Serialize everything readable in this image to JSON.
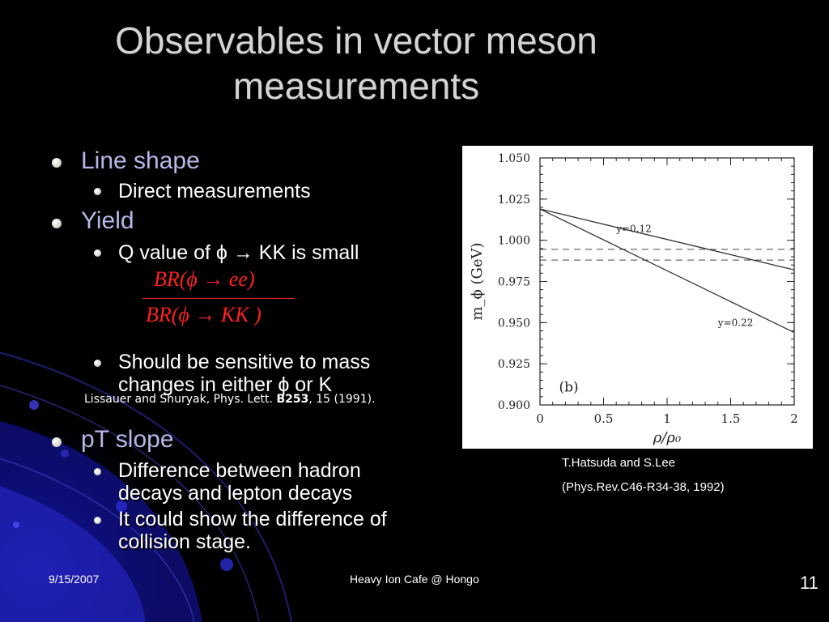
{
  "slide": {
    "title_line1": "Observables in vector meson",
    "title_line2": "measurements",
    "page_number": "11"
  },
  "bullets": {
    "line_shape": "Line shape",
    "direct_measurements": "Direct measurements",
    "yield": "Yield",
    "q_value": "Q value of  ϕ → KK is small",
    "formula_numerator": "BR(ϕ → ee)",
    "formula_denominator": "BR(ϕ → KK )",
    "sensitive_line1": "Should be sensitive to mass",
    "sensitive_line2": "changes in either ϕ or K",
    "reference_prefix": "Lissauer and Shuryak, Phys. Lett. ",
    "reference_volume": "B253",
    "reference_suffix": ", 15 (1991).",
    "pt_slope": "pT slope",
    "diff_line1": "Difference between hadron",
    "diff_line2": "decays and lepton decays",
    "collision_line1": "It could show  the difference of",
    "collision_line2": "collision stage."
  },
  "caption": {
    "line1": "T.Hatsuda and S.Lee",
    "line2": "(Phys.Rev.C46-R34-38, 1992)"
  },
  "footer": {
    "date": "9/15/2007",
    "center": "Heavy Ion Cafe @ Hongo"
  },
  "colors": {
    "background": "#000000",
    "accent_blue": "#1a1aa0",
    "formula_red": "#ff2020",
    "heading_lavender": "#b8b8e8"
  },
  "chart_data": {
    "type": "line",
    "xlabel": "ρ/ρ₀",
    "ylabel": "m_ϕ  (GeV)",
    "panel_label": "(b)",
    "xlim": [
      0,
      2
    ],
    "ylim": [
      0.9,
      1.05
    ],
    "x_ticks": [
      "0",
      "0.5",
      "1",
      "1.5",
      "2"
    ],
    "y_ticks": [
      "0.900",
      "0.925",
      "0.950",
      "0.975",
      "1.000",
      "1.025",
      "1.050"
    ],
    "series": [
      {
        "name": "y=0.12",
        "x": [
          0,
          2
        ],
        "y": [
          1.019,
          0.982
        ]
      },
      {
        "name": "y=0.22",
        "x": [
          0,
          2
        ],
        "y": [
          1.019,
          0.944
        ]
      }
    ],
    "reference_lines": [
      0.9945,
      0.988
    ],
    "grid": false
  }
}
